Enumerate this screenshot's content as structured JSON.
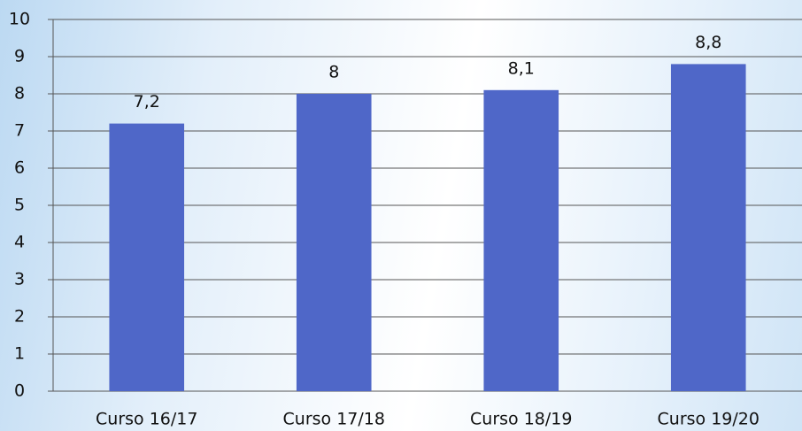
{
  "chart_data": {
    "type": "bar",
    "categories": [
      "Curso 16/17",
      "Curso 17/18",
      "Curso 18/19",
      "Curso 19/20"
    ],
    "values": [
      7.2,
      8,
      8.1,
      8.8
    ],
    "value_labels": [
      "7,2",
      "8",
      "8,1",
      "8,8"
    ],
    "color": "#4f67c8",
    "ylim": [
      0,
      10
    ],
    "yticks": [
      0,
      1,
      2,
      3,
      4,
      5,
      6,
      7,
      8,
      9,
      10
    ],
    "grid": true
  }
}
